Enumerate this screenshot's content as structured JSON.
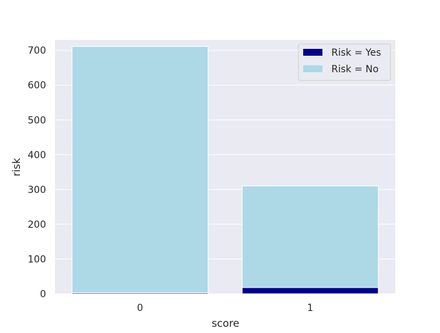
{
  "chart_data": {
    "type": "bar",
    "title": "",
    "xlabel": "score",
    "ylabel": "risk",
    "categories": [
      "0",
      "1"
    ],
    "ylim": [
      0,
      730
    ],
    "yticks": [
      0,
      100,
      200,
      300,
      400,
      500,
      600,
      700
    ],
    "stacked": true,
    "series": [
      {
        "name": "Risk = Yes",
        "color": "#00008b",
        "values": [
          3,
          18
        ]
      },
      {
        "name": "Risk = No",
        "color": "#add8e6",
        "values": [
          708,
          292
        ]
      }
    ],
    "grid": true,
    "legend_position": "top-right"
  },
  "colors": {
    "plot_background": "#eaeaf2",
    "grid": "#ffffff",
    "bar_edge": "#ffffff"
  }
}
